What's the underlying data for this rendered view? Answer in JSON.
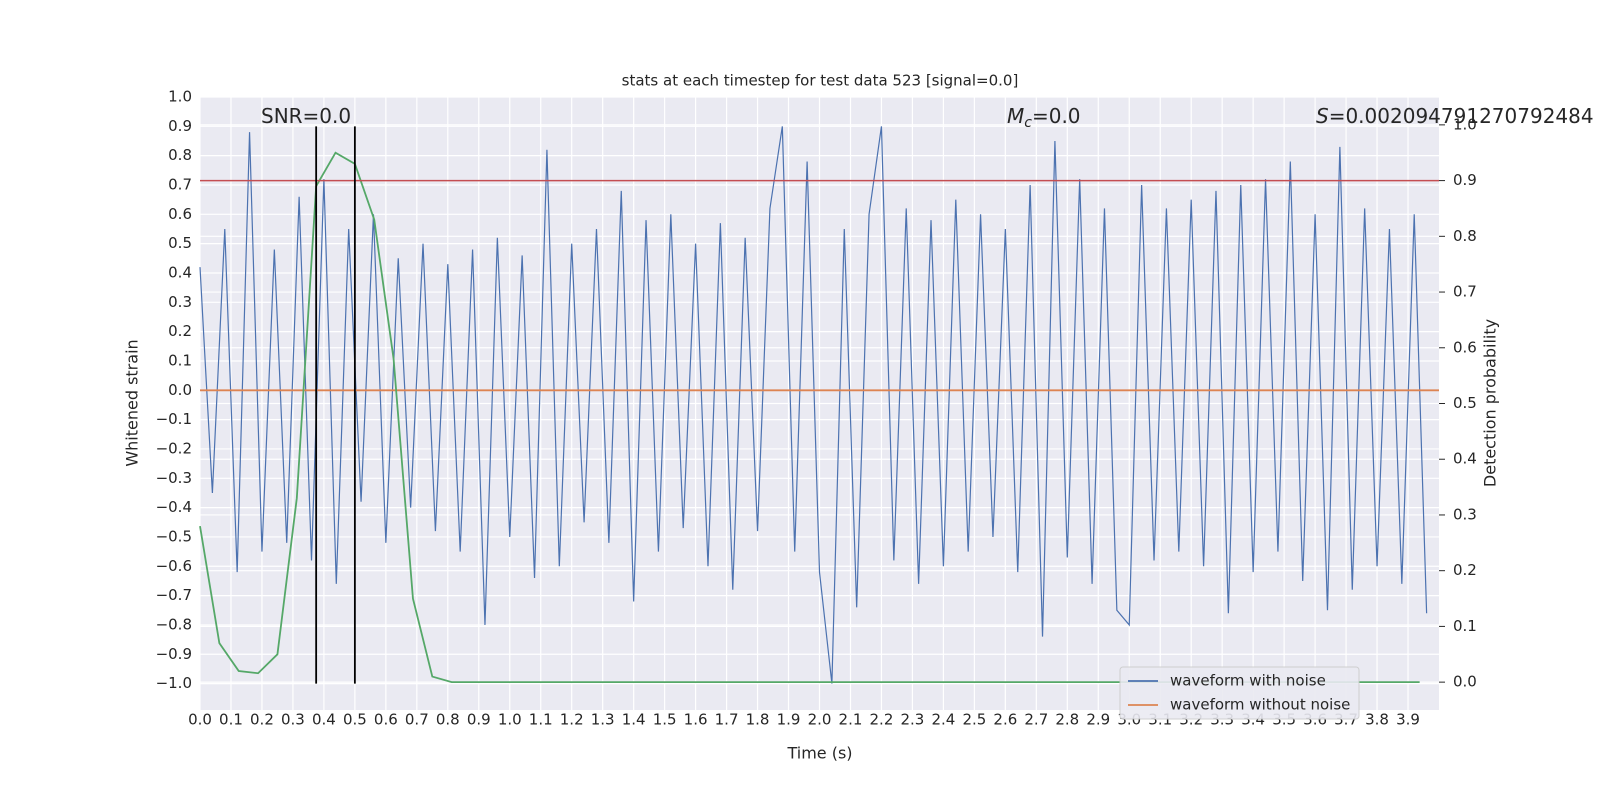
{
  "chart_data": {
    "type": "line",
    "title": "stats at each timestep for test data 523 [signal=0.0]",
    "xlabel": "Time (s)",
    "ylabel": "Whitened strain",
    "y2label": "Detection probability",
    "grid": true,
    "legend": "lower right",
    "xlim": [
      0,
      4
    ],
    "xticks": [
      {
        "value": 0,
        "label": "0.0"
      },
      0.1,
      0.2,
      0.3,
      0.4,
      0.5,
      0.6,
      0.7,
      0.8,
      0.9,
      {
        "value": 1,
        "label": "1.0"
      },
      1.1,
      1.2,
      1.3,
      1.4,
      1.5,
      1.6,
      1.7,
      1.8,
      1.9,
      {
        "value": 2,
        "label": "2.0"
      },
      2.1,
      2.2,
      2.3,
      2.4,
      2.5,
      2.6,
      2.7,
      2.8,
      2.9,
      {
        "value": 3,
        "label": "3.0"
      },
      3.1,
      3.2,
      3.3,
      3.4,
      3.5,
      3.6,
      3.7,
      3.8,
      3.9
    ],
    "ylim": [
      -1.09,
      1.0
    ],
    "yticks": [
      {
        "value": 1,
        "label": "1.0"
      },
      0.9,
      0.8,
      0.7,
      0.6,
      0.5,
      0.4,
      0.3,
      0.2,
      0.1,
      {
        "value": 0,
        "label": "0.0"
      },
      {
        "value": -0.1,
        "label": "−0.1"
      },
      {
        "value": -0.2,
        "label": "−0.2"
      },
      {
        "value": -0.3,
        "label": "−0.3"
      },
      {
        "value": -0.4,
        "label": "−0.4"
      },
      {
        "value": -0.5,
        "label": "−0.5"
      },
      {
        "value": -0.6,
        "label": "−0.6"
      },
      {
        "value": -0.7,
        "label": "−0.7"
      },
      {
        "value": -0.8,
        "label": "−0.8"
      },
      {
        "value": -0.9,
        "label": "−0.9"
      },
      {
        "value": -1,
        "label": "−1.0"
      }
    ],
    "y2lim": [
      -0.05,
      1.05
    ],
    "y2ticks": [
      {
        "value": 0,
        "label": "0.0"
      },
      0.1,
      0.2,
      0.3,
      0.4,
      0.5,
      0.6,
      0.7,
      0.8,
      0.9,
      {
        "value": 1,
        "label": "1.0"
      }
    ],
    "series": [
      {
        "name": "waveform with noise",
        "color": "#4c72b0",
        "x": [
          0,
          0.04,
          0.08,
          0.12,
          0.16,
          0.2,
          0.24,
          0.28,
          0.32,
          0.36,
          0.4,
          0.44,
          0.48,
          0.52,
          0.56,
          0.6,
          0.64,
          0.68,
          0.72,
          0.76,
          0.8,
          0.84,
          0.88,
          0.92,
          0.96,
          1,
          1.04,
          1.08,
          1.12,
          1.16,
          1.2,
          1.24,
          1.28,
          1.32,
          1.36,
          1.4,
          1.44,
          1.48,
          1.52,
          1.56,
          1.6,
          1.64,
          1.68,
          1.72,
          1.76,
          1.8,
          1.84,
          1.88,
          1.92,
          1.96,
          2,
          2.04,
          2.08,
          2.12,
          2.16,
          2.2,
          2.24,
          2.28,
          2.32,
          2.36,
          2.4,
          2.44,
          2.48,
          2.52,
          2.56,
          2.6,
          2.64,
          2.68,
          2.72,
          2.76,
          2.8,
          2.84,
          2.88,
          2.92,
          2.96,
          3,
          3.04,
          3.08,
          3.12,
          3.16,
          3.2,
          3.24,
          3.28,
          3.32,
          3.36,
          3.4,
          3.44,
          3.48,
          3.52,
          3.56,
          3.6,
          3.64,
          3.68,
          3.72,
          3.76,
          3.8,
          3.84,
          3.88,
          3.92,
          3.96
        ],
        "values": [
          0.42,
          -0.35,
          0.55,
          -0.62,
          0.88,
          -0.55,
          0.48,
          -0.52,
          0.66,
          -0.58,
          0.72,
          -0.66,
          0.55,
          -0.38,
          0.6,
          -0.52,
          0.45,
          -0.4,
          0.5,
          -0.48,
          0.43,
          -0.55,
          0.48,
          -0.8,
          0.52,
          -0.5,
          0.46,
          -0.64,
          0.82,
          -0.6,
          0.5,
          -0.45,
          0.55,
          -0.52,
          0.68,
          -0.72,
          0.58,
          -0.55,
          0.6,
          -0.47,
          0.5,
          -0.6,
          0.57,
          -0.68,
          0.52,
          -0.48,
          0.62,
          0.9,
          -0.55,
          0.78,
          -0.62,
          -1.0,
          0.55,
          -0.74,
          0.6,
          0.9,
          -0.58,
          0.62,
          -0.66,
          0.58,
          -0.6,
          0.65,
          -0.55,
          0.6,
          -0.5,
          0.55,
          -0.62,
          0.7,
          -0.84,
          0.85,
          -0.57,
          0.72,
          -0.66,
          0.62,
          -0.75,
          -0.8,
          0.7,
          -0.58,
          0.62,
          -0.55,
          0.65,
          -0.6,
          0.68,
          -0.76,
          0.7,
          -0.62,
          0.72,
          -0.55,
          0.78,
          -0.65,
          0.6,
          -0.75,
          0.83,
          -0.68,
          0.62,
          -0.6,
          0.55,
          -0.66,
          0.6,
          -0.76
        ]
      },
      {
        "name": "waveform without noise",
        "color": "#dd8452",
        "x": [
          0,
          4
        ],
        "values": [
          0,
          0
        ]
      },
      {
        "color": "#55a868",
        "axis": "y2",
        "x": [
          0,
          0.0625,
          0.125,
          0.1875,
          0.25,
          0.3125,
          0.375,
          0.4375,
          0.5,
          0.5625,
          0.625,
          0.6875,
          0.75,
          0.8125,
          0.875,
          0.9375,
          1,
          1.0625,
          1.125,
          1.1875,
          1.25,
          1.3125,
          1.375,
          1.4375,
          1.5,
          1.5625,
          1.625,
          1.6875,
          1.75,
          1.8125,
          1.875,
          1.9375,
          2,
          2.0625,
          2.125,
          2.1875,
          2.25,
          2.3125,
          2.375,
          2.4375,
          2.5,
          2.5625,
          2.625,
          2.6875,
          2.75,
          2.8125,
          2.875,
          2.9375,
          3,
          3.0625,
          3.125,
          3.1875,
          3.25,
          3.3125,
          3.375,
          3.4375,
          3.5,
          3.5625,
          3.625,
          3.6875,
          3.75,
          3.8125,
          3.875,
          3.9375
        ],
        "values": [
          0.28,
          0.07,
          0.02,
          0.016,
          0.05,
          0.33,
          0.89,
          0.95,
          0.93,
          0.83,
          0.58,
          0.15,
          0.01,
          0,
          0,
          0,
          0,
          0,
          0,
          0,
          0,
          0,
          0,
          0,
          0,
          0,
          0,
          0,
          0,
          0,
          0,
          0,
          0,
          0,
          0,
          0,
          0,
          0,
          0,
          0,
          0,
          0,
          0,
          0,
          0,
          0,
          0,
          0,
          0,
          0,
          0,
          0,
          0,
          0,
          0,
          0,
          0,
          0,
          0,
          0,
          0,
          0,
          0,
          0
        ]
      }
    ],
    "hlines": [
      {
        "axis": "y2",
        "value": 0.9,
        "color": "#c44e52"
      }
    ],
    "vlines": [
      {
        "x": 0.375,
        "ymin": -1.0,
        "ymax": 0.9,
        "color": "#000000"
      },
      {
        "x": 0.5,
        "ymin": -1.0,
        "ymax": 0.9,
        "color": "#000000"
      }
    ],
    "annotations": [
      {
        "text": "SNR=0.0"
      },
      {
        "symbol": "M",
        "subscript": "c",
        "text": "=0.0"
      },
      {
        "symbol": "S",
        "text": "=0.002094791270792484"
      }
    ]
  }
}
